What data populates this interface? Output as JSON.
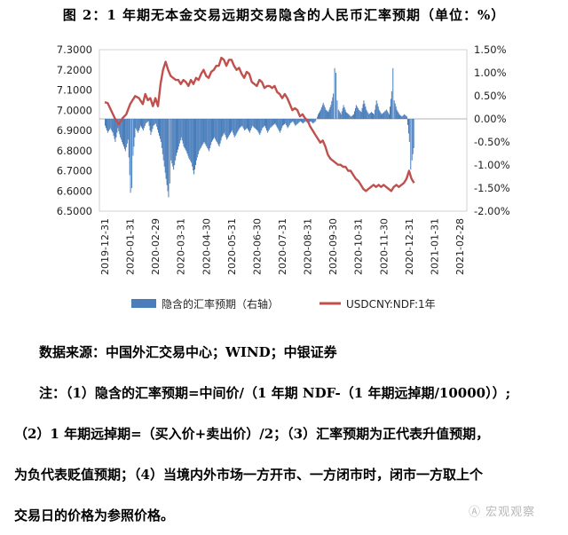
{
  "figure": {
    "title": "图 2：1 年期无本金交易远期交易隐含的人民币汇率预期（单位：%）"
  },
  "chart_data": {
    "type": "combo-bar-line",
    "title": "图 2：1 年期无本金交易远期交易隐含的人民币汇率预期（单位：%）",
    "y_left": {
      "min": 6.5,
      "max": 7.3,
      "step": 0.1,
      "tick_labels": [
        "6.5000",
        "6.6000",
        "6.7000",
        "6.8000",
        "6.9000",
        "7.0000",
        "7.1000",
        "7.2000",
        "7.3000"
      ]
    },
    "y_right": {
      "min": -2.0,
      "max": 1.5,
      "step": 0.5,
      "tick_labels": [
        "-2.00%",
        "-1.50%",
        "-1.00%",
        "-0.50%",
        "0.00%",
        "0.50%",
        "1.00%",
        "1.50%"
      ]
    },
    "x_labels": [
      "2019-12-31",
      "2020-01-31",
      "2020-02-29",
      "2020-03-31",
      "2020-04-30",
      "2020-05-31",
      "2020-06-30",
      "2020-07-31",
      "2020-08-31",
      "2020-09-30",
      "2020-10-31",
      "2020-11-30",
      "2020-12-31",
      "2021-01-31",
      "2021-02-28"
    ],
    "legend": [
      {
        "name": "隐含的汇率预期（右轴）",
        "color": "#4a7ebb",
        "kind": "bar"
      },
      {
        "name": "USDCNY:NDF:1年",
        "color": "#c0504d",
        "kind": "line"
      }
    ],
    "series": [
      {
        "name": "USDCNY:NDF:1年",
        "axis": "left",
        "kind": "line",
        "points": [
          [
            0,
            7.04
          ],
          [
            0.12,
            7.035
          ],
          [
            0.25,
            7.0
          ],
          [
            0.4,
            6.96
          ],
          [
            0.55,
            6.93
          ],
          [
            0.7,
            6.96
          ],
          [
            0.85,
            6.98
          ],
          [
            1.0,
            7.03
          ],
          [
            1.1,
            7.05
          ],
          [
            1.2,
            7.07
          ],
          [
            1.35,
            7.06
          ],
          [
            1.5,
            7.03
          ],
          [
            1.6,
            7.08
          ],
          [
            1.7,
            7.05
          ],
          [
            1.8,
            7.06
          ],
          [
            1.9,
            7.02
          ],
          [
            2.0,
            7.06
          ],
          [
            2.1,
            7.02
          ],
          [
            2.2,
            7.13
          ],
          [
            2.3,
            7.2
          ],
          [
            2.4,
            7.24
          ],
          [
            2.5,
            7.2
          ],
          [
            2.6,
            7.17
          ],
          [
            2.7,
            7.16
          ],
          [
            2.8,
            7.15
          ],
          [
            2.9,
            7.15
          ],
          [
            3.0,
            7.13
          ],
          [
            3.1,
            7.15
          ],
          [
            3.2,
            7.14
          ],
          [
            3.3,
            7.12
          ],
          [
            3.4,
            7.15
          ],
          [
            3.5,
            7.13
          ],
          [
            3.6,
            7.16
          ],
          [
            3.7,
            7.15
          ],
          [
            3.8,
            7.18
          ],
          [
            3.9,
            7.2
          ],
          [
            4.0,
            7.17
          ],
          [
            4.1,
            7.16
          ],
          [
            4.2,
            7.19
          ],
          [
            4.3,
            7.2
          ],
          [
            4.4,
            7.22
          ],
          [
            4.5,
            7.22
          ],
          [
            4.6,
            7.26
          ],
          [
            4.7,
            7.25
          ],
          [
            4.8,
            7.22
          ],
          [
            4.9,
            7.25
          ],
          [
            5.0,
            7.25
          ],
          [
            5.1,
            7.22
          ],
          [
            5.2,
            7.2
          ],
          [
            5.3,
            7.21
          ],
          [
            5.4,
            7.18
          ],
          [
            5.5,
            7.16
          ],
          [
            5.6,
            7.19
          ],
          [
            5.7,
            7.18
          ],
          [
            5.8,
            7.14
          ],
          [
            5.9,
            7.13
          ],
          [
            6.0,
            7.12
          ],
          [
            6.1,
            7.15
          ],
          [
            6.2,
            7.14
          ],
          [
            6.3,
            7.11
          ],
          [
            6.4,
            7.12
          ],
          [
            6.5,
            7.12
          ],
          [
            6.6,
            7.11
          ],
          [
            6.7,
            7.12
          ],
          [
            6.8,
            7.09
          ],
          [
            6.9,
            7.08
          ],
          [
            7.0,
            7.06
          ],
          [
            7.1,
            7.08
          ],
          [
            7.2,
            7.06
          ],
          [
            7.3,
            7.03
          ],
          [
            7.4,
            7.0
          ],
          [
            7.5,
            7.01
          ],
          [
            7.6,
            7.0
          ],
          [
            7.7,
            6.97
          ],
          [
            7.8,
            6.98
          ],
          [
            7.9,
            6.96
          ],
          [
            8.0,
            6.95
          ],
          [
            8.1,
            6.92
          ],
          [
            8.2,
            6.9
          ],
          [
            8.3,
            6.88
          ],
          [
            8.4,
            6.86
          ],
          [
            8.5,
            6.84
          ],
          [
            8.6,
            6.85
          ],
          [
            8.7,
            6.82
          ],
          [
            8.8,
            6.78
          ],
          [
            8.9,
            6.76
          ],
          [
            9.0,
            6.75
          ],
          [
            9.1,
            6.74
          ],
          [
            9.2,
            6.73
          ],
          [
            9.3,
            6.73
          ],
          [
            9.4,
            6.72
          ],
          [
            9.5,
            6.72
          ],
          [
            9.6,
            6.7
          ],
          [
            9.7,
            6.7
          ],
          [
            9.8,
            6.68
          ],
          [
            9.9,
            6.66
          ],
          [
            10.0,
            6.65
          ],
          [
            10.1,
            6.63
          ],
          [
            10.2,
            6.61
          ],
          [
            10.3,
            6.6
          ],
          [
            10.4,
            6.61
          ],
          [
            10.5,
            6.62
          ],
          [
            10.6,
            6.63
          ],
          [
            10.7,
            6.62
          ],
          [
            10.8,
            6.63
          ],
          [
            10.9,
            6.62
          ],
          [
            11.0,
            6.63
          ],
          [
            11.1,
            6.62
          ],
          [
            11.2,
            6.61
          ],
          [
            11.3,
            6.6
          ],
          [
            11.4,
            6.62
          ],
          [
            11.5,
            6.63
          ],
          [
            11.6,
            6.62
          ],
          [
            11.7,
            6.63
          ],
          [
            11.8,
            6.64
          ],
          [
            11.9,
            6.66
          ],
          [
            12.0,
            6.7
          ],
          [
            12.1,
            6.66
          ],
          [
            12.2,
            6.64
          ]
        ]
      },
      {
        "name": "隐含的汇率预期（右轴）",
        "axis": "right",
        "kind": "bar",
        "points": [
          [
            0,
            -0.15
          ],
          [
            0.1,
            -0.3
          ],
          [
            0.2,
            -0.2
          ],
          [
            0.3,
            -0.3
          ],
          [
            0.4,
            -0.5
          ],
          [
            0.5,
            -0.2
          ],
          [
            0.6,
            -0.4
          ],
          [
            0.7,
            -0.55
          ],
          [
            0.8,
            -0.7
          ],
          [
            0.9,
            -0.45
          ],
          [
            1.0,
            -1.6
          ],
          [
            1.05,
            -1.5
          ],
          [
            1.1,
            -0.8
          ],
          [
            1.2,
            -0.2
          ],
          [
            1.3,
            -0.3
          ],
          [
            1.4,
            -0.15
          ],
          [
            1.5,
            -0.25
          ],
          [
            1.6,
            -0.1
          ],
          [
            1.7,
            -0.05
          ],
          [
            1.8,
            -0.35
          ],
          [
            1.9,
            -0.15
          ],
          [
            2.0,
            -0.1
          ],
          [
            2.1,
            -0.3
          ],
          [
            2.2,
            -0.5
          ],
          [
            2.3,
            -0.9
          ],
          [
            2.4,
            -1.3
          ],
          [
            2.5,
            -1.7
          ],
          [
            2.55,
            -1.4
          ],
          [
            2.6,
            -0.9
          ],
          [
            2.7,
            -1.1
          ],
          [
            2.8,
            -0.8
          ],
          [
            2.9,
            -0.6
          ],
          [
            3.0,
            -0.4
          ],
          [
            3.1,
            -0.6
          ],
          [
            3.2,
            -0.7
          ],
          [
            3.3,
            -0.85
          ],
          [
            3.4,
            -0.95
          ],
          [
            3.5,
            -1.2
          ],
          [
            3.6,
            -0.9
          ],
          [
            3.7,
            -0.7
          ],
          [
            3.8,
            -0.6
          ],
          [
            3.9,
            -0.5
          ],
          [
            4.0,
            -0.6
          ],
          [
            4.1,
            -0.7
          ],
          [
            4.2,
            -0.5
          ],
          [
            4.3,
            -0.4
          ],
          [
            4.4,
            -0.5
          ],
          [
            4.5,
            -0.6
          ],
          [
            4.6,
            -0.4
          ],
          [
            4.7,
            -0.3
          ],
          [
            4.8,
            -0.45
          ],
          [
            4.9,
            -0.35
          ],
          [
            5.0,
            -0.25
          ],
          [
            5.1,
            -0.4
          ],
          [
            5.2,
            -0.3
          ],
          [
            5.3,
            -0.2
          ],
          [
            5.4,
            -0.15
          ],
          [
            5.5,
            -0.25
          ],
          [
            5.6,
            -0.2
          ],
          [
            5.7,
            -0.3
          ],
          [
            5.8,
            -0.15
          ],
          [
            5.9,
            -0.2
          ],
          [
            6.0,
            -0.25
          ],
          [
            6.1,
            -0.35
          ],
          [
            6.2,
            -0.2
          ],
          [
            6.3,
            -0.15
          ],
          [
            6.4,
            -0.3
          ],
          [
            6.5,
            -0.2
          ],
          [
            6.6,
            -0.15
          ],
          [
            6.7,
            -0.1
          ],
          [
            6.8,
            -0.2
          ],
          [
            6.9,
            -0.3
          ],
          [
            7.0,
            -0.15
          ],
          [
            7.1,
            -0.1
          ],
          [
            7.2,
            -0.2
          ],
          [
            7.3,
            -0.1
          ],
          [
            7.4,
            -0.05
          ],
          [
            7.5,
            -0.15
          ],
          [
            7.6,
            -0.1
          ],
          [
            7.7,
            -0.05
          ],
          [
            7.8,
            -0.1
          ],
          [
            7.9,
            -0.05
          ],
          [
            8.0,
            -0.1
          ],
          [
            8.1,
            -0.05
          ],
          [
            8.2,
            -0.1
          ],
          [
            8.3,
            -0.05
          ],
          [
            8.4,
            0.1
          ],
          [
            8.5,
            0.2
          ],
          [
            8.6,
            0.35
          ],
          [
            8.7,
            0.2
          ],
          [
            8.8,
            0.15
          ],
          [
            8.9,
            0.3
          ],
          [
            9.0,
            0.55
          ],
          [
            9.05,
            1.1
          ],
          [
            9.1,
            1.0
          ],
          [
            9.15,
            0.4
          ],
          [
            9.2,
            0.2
          ],
          [
            9.3,
            0.1
          ],
          [
            9.4,
            0.3
          ],
          [
            9.5,
            0.15
          ],
          [
            9.6,
            0.1
          ],
          [
            9.7,
            0.05
          ],
          [
            9.8,
            0.1
          ],
          [
            9.9,
            0.3
          ],
          [
            10.0,
            0.2
          ],
          [
            10.1,
            0.15
          ],
          [
            10.2,
            0.4
          ],
          [
            10.3,
            0.2
          ],
          [
            10.4,
            0.1
          ],
          [
            10.5,
            0.15
          ],
          [
            10.6,
            0.1
          ],
          [
            10.7,
            0.4
          ],
          [
            10.8,
            0.2
          ],
          [
            10.9,
            0.1
          ],
          [
            11.0,
            0.15
          ],
          [
            11.1,
            0.2
          ],
          [
            11.2,
            0.1
          ],
          [
            11.3,
            0.6
          ],
          [
            11.35,
            1.1
          ],
          [
            11.4,
            0.4
          ],
          [
            11.5,
            0.2
          ],
          [
            11.6,
            0.1
          ],
          [
            11.7,
            0.05
          ],
          [
            11.8,
            0.1
          ],
          [
            11.9,
            0.05
          ],
          [
            12.0,
            -0.5
          ],
          [
            12.05,
            -1.1
          ],
          [
            12.1,
            -0.9
          ],
          [
            12.2,
            -0.5
          ]
        ]
      }
    ]
  },
  "notes": {
    "source": "数据来源：中国外汇交易中心；WIND；中银证券",
    "line1": "注：（1）隐含的汇率预期=中间价/（1 年期 NDF-（1 年期远掉期/10000））;",
    "line2": "（2）1 年期远掉期=（买入价+卖出价）/2；（3）汇率预期为正代表升值预期，",
    "line3": "为负代表贬值预期；（4）当境内外市场一方开市、一方闭市时，闭市一方取上个",
    "line4": "交易日的价格为参照价格。"
  },
  "watermark": {
    "text": "Ⓐ 宏观观察"
  }
}
